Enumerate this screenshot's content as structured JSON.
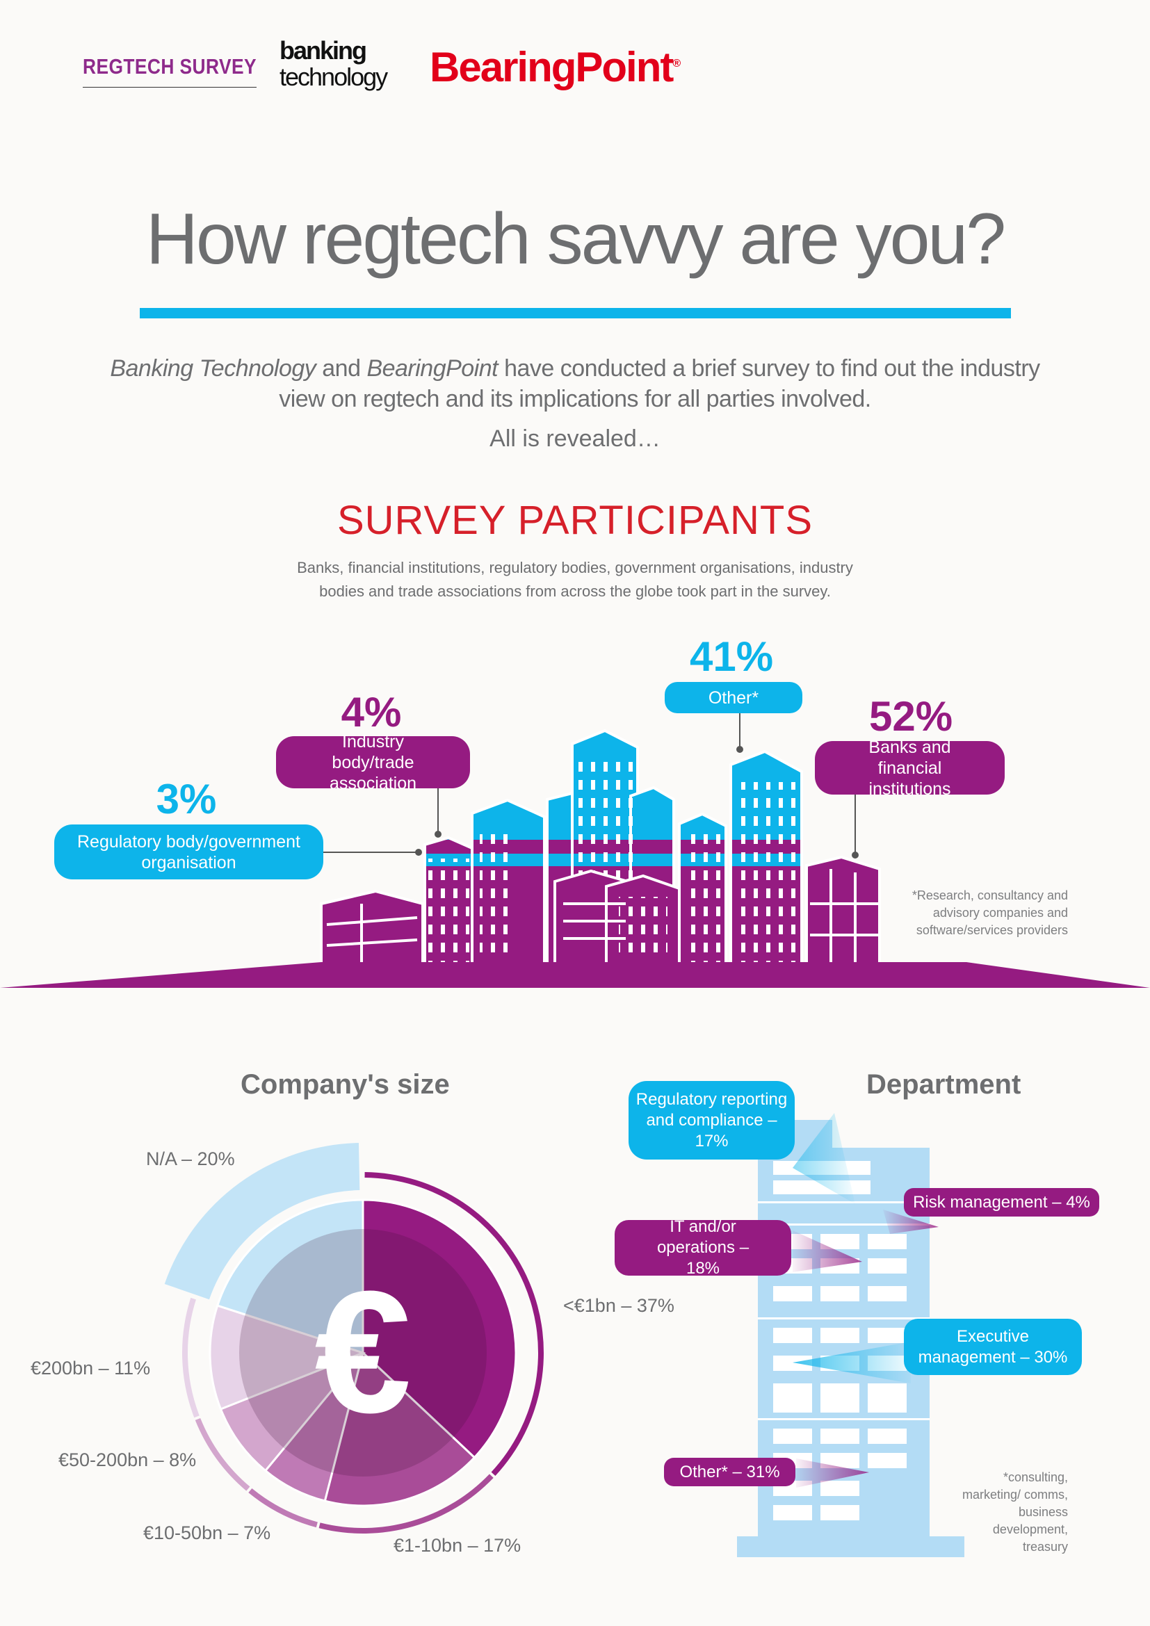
{
  "header": {
    "regtech_survey": "REGTECH SURVEY",
    "banking_technology_line1": "banking",
    "banking_technology_line2": "technology",
    "bearingpoint": "BearingPoint",
    "bearingpoint_mark": "®"
  },
  "title": "How regtech savvy are you?",
  "intro": {
    "brand1": "Banking Technology",
    "and": " and ",
    "brand2": "BearingPoint",
    "rest_line1": " have conducted a brief survey to find out the industry",
    "line2": "view on regtech and its implications for all parties involved.",
    "revealed": "All is revealed…"
  },
  "participants": {
    "title": "SURVEY PARTICIPANTS",
    "subtitle_line1": "Banks, financial institutions, regulatory bodies, government organisations, industry",
    "subtitle_line2": "bodies and trade associations from across the globe took part in the survey.",
    "items": [
      {
        "pct": "3%",
        "label": "Regulatory body/government organisation",
        "color": "#0db4ea"
      },
      {
        "pct": "4%",
        "label": "Industry body/trade association",
        "color": "#951b81"
      },
      {
        "pct": "41%",
        "label": "Other*",
        "color": "#0db4ea"
      },
      {
        "pct": "52%",
        "label": "Banks and financial institutions",
        "color": "#951b81"
      }
    ],
    "footnote": "*Research, consultancy and advisory companies and software/services providers"
  },
  "department": {
    "title": "Department",
    "items": [
      {
        "label": "Regulatory reporting and compliance – 17%",
        "color": "#0db4ea"
      },
      {
        "label": "Risk management – 4%",
        "color": "#951b81"
      },
      {
        "label": "IT and/or operations – 18%",
        "color": "#951b81"
      },
      {
        "label": "Executive management – 30%",
        "color": "#0db4ea"
      },
      {
        "label": "Other* – 31%",
        "color": "#951b81"
      }
    ],
    "footnote": "*consulting, marketing/ comms, business development, treasury"
  },
  "chart_data": {
    "type": "pie",
    "title": "Company's size",
    "center_symbol": "€",
    "categories": [
      "<€1bn",
      "€1-10bn",
      "€10-50bn",
      "€50-200bn",
      "€200bn",
      "N/A"
    ],
    "values": [
      37,
      17,
      7,
      8,
      11,
      20
    ],
    "labels": [
      "<€1bn – 37%",
      "€1-10bn – 17%",
      "€10-50bn – 7%",
      "€50-200bn – 8%",
      "€200bn – 11%",
      "N/A – 20%"
    ],
    "colors": [
      "#951b81",
      "#a94c98",
      "#bf7ab5",
      "#d3a6cd",
      "#e7d3e8",
      "#c3e4f7"
    ],
    "start": "12 o'clock, clockwise"
  }
}
